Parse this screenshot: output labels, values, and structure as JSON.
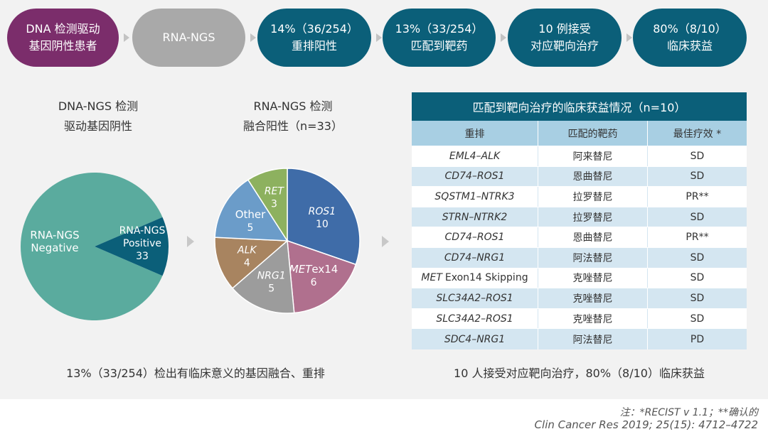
{
  "flow": {
    "steps": [
      {
        "lines": [
          "DNA 检测驱动",
          "基因阴性患者"
        ],
        "color": "#7b2d6b"
      },
      {
        "lines": [
          "RNA-NGS"
        ],
        "color": "#a9a9a9"
      },
      {
        "lines": [
          "14%（36/254）",
          "重排阳性"
        ],
        "color": "#0b5f79"
      },
      {
        "lines": [
          "13%（33/254）",
          "匹配到靶药"
        ],
        "color": "#0b5f79"
      },
      {
        "lines": [
          "10 例接受",
          "对应靶向治疗"
        ],
        "color": "#0b5f79"
      },
      {
        "lines": [
          "80%（8/10）",
          "临床获益"
        ],
        "color": "#0b5f79"
      }
    ]
  },
  "left_section": {
    "title_lines": [
      "DNA-NGS 检测",
      "驱动基因阴性"
    ]
  },
  "middle_section": {
    "title_lines": [
      "RNA-NGS 检测",
      "融合阳性（n=33）"
    ]
  },
  "chart_data": [
    {
      "type": "pie",
      "title": "DNA-NGS 检测 驱动基因阴性",
      "slices": [
        {
          "label": "RNA-NGS Negative",
          "lines": [
            "RNA-NGS",
            "Negative"
          ],
          "value": 221,
          "value_shown": false,
          "color": "#5aab9e"
        },
        {
          "label": "RNA-NGS Positive",
          "lines": [
            "RNA-NGS",
            "Positive"
          ],
          "value": 33,
          "value_shown": true,
          "color": "#0b5f79"
        }
      ]
    },
    {
      "type": "pie",
      "title": "RNA-NGS 检测 融合阳性（n=33）",
      "slices": [
        {
          "label": "ROS1",
          "value": 10,
          "color": "#3f6ca8",
          "italic": true
        },
        {
          "label": "METex14",
          "label_italic_part": "MET",
          "label_normal_part": "ex14",
          "value": 6,
          "color": "#b0708e"
        },
        {
          "label": "NRG1",
          "value": 5,
          "color": "#9c9c9c",
          "italic": true
        },
        {
          "label": "ALK",
          "value": 4,
          "color": "#a88460",
          "italic": true
        },
        {
          "label": "Other",
          "value": 5,
          "color": "#6b9cc9",
          "italic": false
        },
        {
          "label": "RET",
          "value": 3,
          "color": "#8db15f",
          "italic": true
        }
      ]
    }
  ],
  "table": {
    "title": "匹配到靶向治疗的临床获益情况（n=10）",
    "headers": [
      "重排",
      "匹配的靶药",
      "最佳疗效 *"
    ],
    "rows": [
      {
        "fusion": "EML4–ALK",
        "drug": "阿来替尼",
        "response": "SD"
      },
      {
        "fusion": "CD74–ROS1",
        "drug": "恩曲替尼",
        "response": "SD"
      },
      {
        "fusion": "SQSTM1–NTRK3",
        "drug": "拉罗替尼",
        "response": "PR**"
      },
      {
        "fusion": "STRN–NTRK2",
        "drug": "拉罗替尼",
        "response": "SD"
      },
      {
        "fusion": "CD74–ROS1",
        "drug": "恩曲替尼",
        "response": "PR**"
      },
      {
        "fusion": "CD74–NRG1",
        "drug": "阿法替尼",
        "response": "SD"
      },
      {
        "fusion": "MET",
        "fusion_suffix": "Exon14 Skipping",
        "drug": "克唑替尼",
        "response": "SD"
      },
      {
        "fusion": "SLC34A2–ROS1",
        "drug": "克唑替尼",
        "response": "SD"
      },
      {
        "fusion": "SLC34A2–ROS1",
        "drug": "克唑替尼",
        "response": "SD"
      },
      {
        "fusion": "SDC4–NRG1",
        "drug": "阿法替尼",
        "response": "PD"
      }
    ]
  },
  "summaries": {
    "left": "13%（33/254）检出有临床意义的基因融合、重排",
    "right": "10 人接受对应靶向治疗，80%（8/10）临床获益"
  },
  "footer": {
    "note": "注：*RECIST v 1.1；**确认的",
    "citation": "Clin Cancer Res 2019; 25(15): 4712–4722"
  }
}
